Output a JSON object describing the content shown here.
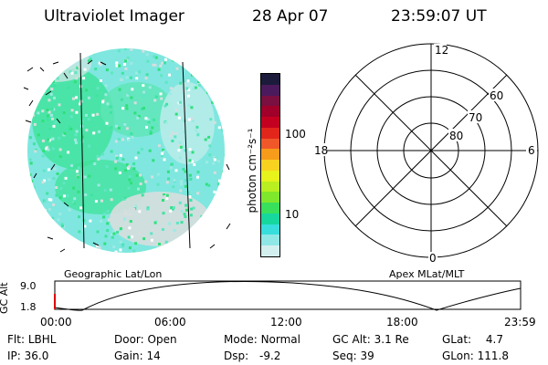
{
  "header": {
    "instrument": "Ultraviolet Imager",
    "date": "28 Apr 07",
    "time": "23:59:07 UT"
  },
  "globe": {
    "caption": "Geographic Lat/Lon",
    "colors": {
      "base": "#7fe7df",
      "bright": "#2fe07a",
      "pale": "#d7dede",
      "grid": "#000000"
    }
  },
  "colorbar": {
    "unit_label": "photon cm⁻²s⁻¹",
    "ticks": [
      "100",
      "10"
    ],
    "levels": [
      "#1c1b3b",
      "#4b1a5c",
      "#7a0f41",
      "#a0002a",
      "#c40020",
      "#e2261b",
      "#f0582a",
      "#f79b1a",
      "#f8d21f",
      "#e8f21b",
      "#b9ef20",
      "#7fe82c",
      "#38e05c",
      "#16d79d",
      "#37dedc",
      "#8fe8e6",
      "#d3f0ef"
    ]
  },
  "polar": {
    "caption": "Apex  MLat/MLT",
    "mlt_labels": [
      "12",
      "18",
      "6",
      "0"
    ],
    "mlat_labels": [
      "60",
      "70",
      "80"
    ]
  },
  "orbit": {
    "y_axis_label": "GC Alt",
    "y_ticks": [
      "9.0",
      "1.8"
    ],
    "x_ticks": [
      "00:00",
      "06:00",
      "12:00",
      "18:00",
      "23:59"
    ]
  },
  "status": {
    "row1": [
      {
        "label": "Flt:",
        "value": "LBHL"
      },
      {
        "label": "Door:",
        "value": "Open"
      },
      {
        "label": "Mode:",
        "value": "Normal"
      },
      {
        "label": "GC Alt:",
        "value": "3.1 Re"
      },
      {
        "label": "GLat:",
        "value": "4.7"
      }
    ],
    "row2": [
      {
        "label": "IP:",
        "value": "36.0"
      },
      {
        "label": "Gain:",
        "value": "14"
      },
      {
        "label": "Dsp:",
        "value": "-9.2"
      },
      {
        "label": "Seq:",
        "value": "39"
      },
      {
        "label": "GLon:",
        "value": "111.8"
      }
    ]
  }
}
